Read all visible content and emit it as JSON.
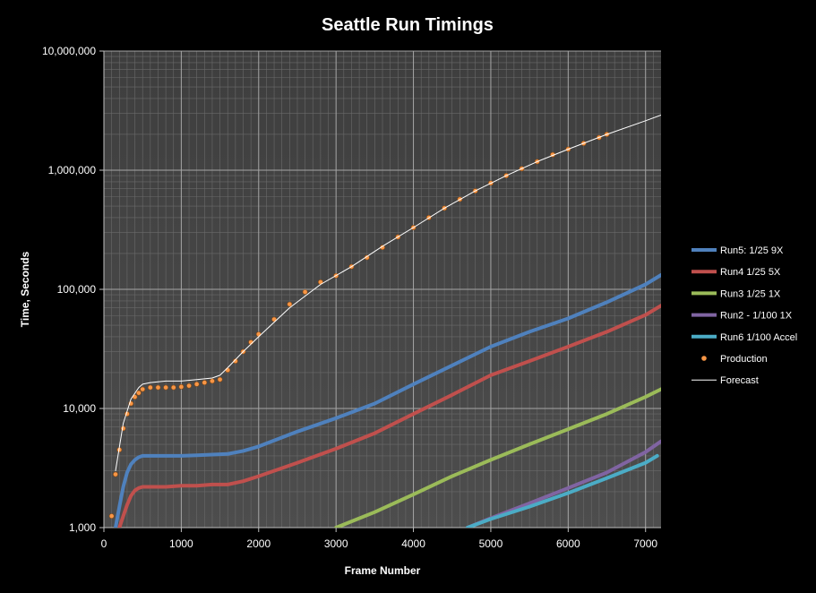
{
  "chart_data": {
    "type": "line",
    "title": "Seattle Run Timings",
    "xlabel": "Frame Number",
    "ylabel": "Time, Seconds",
    "xlim": [
      0,
      7200
    ],
    "ylim": [
      1000,
      10000000
    ],
    "yscale": "log",
    "grid": true,
    "legend_position": "right",
    "x_ticks": [
      0,
      1000,
      2000,
      3000,
      4000,
      5000,
      6000,
      7000
    ],
    "x_tick_labels": [
      "0",
      "1000",
      "2000",
      "3000",
      "4000",
      "5000",
      "6000",
      "7000"
    ],
    "y_ticks": [
      1000,
      10000,
      100000,
      1000000,
      10000000
    ],
    "y_tick_labels": [
      "1,000",
      "10,000",
      "100,000",
      "1,000,000",
      "10,000,000"
    ],
    "series": [
      {
        "name": "Run5: 1/25 9X",
        "color": "#4F81BD",
        "style": "line",
        "x": [
          150,
          200,
          250,
          300,
          350,
          400,
          450,
          500,
          600,
          800,
          1000,
          1200,
          1400,
          1600,
          1800,
          2000,
          2500,
          3000,
          3500,
          4000,
          4500,
          5000,
          5500,
          6000,
          6500,
          7000,
          7200
        ],
        "y": [
          1000,
          1500,
          2200,
          2900,
          3400,
          3700,
          3900,
          4000,
          4000,
          4000,
          4000,
          4050,
          4100,
          4150,
          4400,
          4800,
          6400,
          8300,
          11000,
          16000,
          23000,
          33000,
          44000,
          57000,
          78000,
          110000,
          132000
        ]
      },
      {
        "name": "Run4 1/25 5X",
        "color": "#C0504D",
        "style": "line",
        "x": [
          200,
          250,
          300,
          350,
          400,
          450,
          500,
          600,
          800,
          1000,
          1200,
          1400,
          1600,
          1800,
          2000,
          2500,
          3000,
          3500,
          4000,
          4500,
          5000,
          5500,
          6000,
          6500,
          7000,
          7200
        ],
        "y": [
          1000,
          1250,
          1550,
          1850,
          2050,
          2150,
          2200,
          2200,
          2200,
          2250,
          2250,
          2300,
          2300,
          2450,
          2700,
          3500,
          4600,
          6200,
          9000,
          13000,
          19000,
          25000,
          33000,
          44000,
          61000,
          73000
        ]
      },
      {
        "name": "Run3 1/25 1X",
        "color": "#9BBB59",
        "style": "line",
        "x": [
          3000,
          3500,
          4000,
          4500,
          5000,
          5500,
          6000,
          6500,
          7000,
          7200
        ],
        "y": [
          1000,
          1350,
          1900,
          2700,
          3700,
          5000,
          6700,
          9000,
          12500,
          14500
        ]
      },
      {
        "name": "Run2 - 1/100 1X",
        "color": "#8064A2",
        "style": "line",
        "x": [
          4700,
          5000,
          5500,
          6000,
          6500,
          7000,
          7200
        ],
        "y": [
          1000,
          1200,
          1600,
          2150,
          2900,
          4300,
          5300
        ]
      },
      {
        "name": "Run6 1/100 Accel",
        "color": "#4BACC6",
        "style": "line",
        "x": [
          4700,
          5000,
          5500,
          6000,
          6500,
          7000,
          7150
        ],
        "y": [
          1000,
          1180,
          1500,
          1950,
          2600,
          3500,
          4000
        ]
      },
      {
        "name": "Production",
        "color": "#F79646",
        "style": "markers",
        "x": [
          100,
          150,
          200,
          250,
          300,
          350,
          400,
          450,
          500,
          600,
          700,
          800,
          900,
          1000,
          1100,
          1200,
          1300,
          1400,
          1500,
          1600,
          1700,
          1800,
          1900,
          2000,
          2200,
          2400,
          2600,
          2800,
          3000,
          3200,
          3400,
          3600,
          3800,
          4000,
          4200,
          4400,
          4600,
          4800,
          5000,
          5200,
          5400,
          5600,
          5800,
          6000,
          6200,
          6400,
          6500
        ],
        "y": [
          1250,
          2800,
          4500,
          6800,
          9000,
          11000,
          12500,
          13500,
          14500,
          15000,
          15000,
          15000,
          15000,
          15200,
          15500,
          16000,
          16500,
          17000,
          17500,
          21000,
          25000,
          30000,
          36000,
          42000,
          56000,
          75000,
          95000,
          115000,
          130000,
          155000,
          185000,
          225000,
          275000,
          330000,
          400000,
          480000,
          570000,
          670000,
          780000,
          900000,
          1030000,
          1180000,
          1350000,
          1500000,
          1680000,
          1880000,
          2000000
        ]
      },
      {
        "name": "Forecast",
        "color": "#FFFFFF",
        "style": "thin-line",
        "x": [
          150,
          250,
          350,
          450,
          500,
          600,
          800,
          1000,
          1200,
          1400,
          1500,
          1600,
          1800,
          2000,
          2400,
          2800,
          3200,
          3600,
          4000,
          4400,
          4800,
          5200,
          5600,
          6000,
          6500,
          7000,
          7200
        ],
        "y": [
          3000,
          7500,
          12000,
          15000,
          16000,
          16500,
          17000,
          17000,
          17500,
          18000,
          19000,
          22000,
          30000,
          40000,
          70000,
          110000,
          155000,
          230000,
          330000,
          480000,
          670000,
          900000,
          1180000,
          1500000,
          2000000,
          2600000,
          2900000
        ]
      }
    ]
  }
}
